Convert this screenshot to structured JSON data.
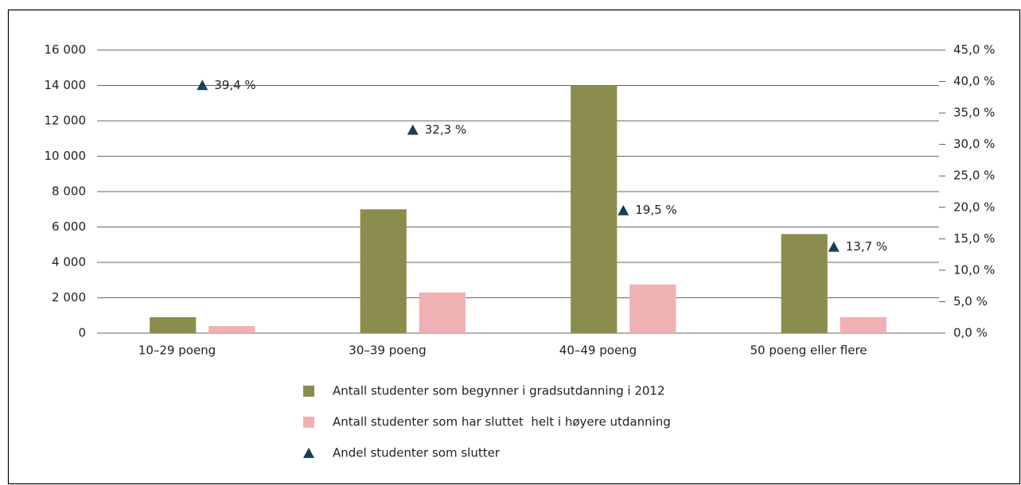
{
  "chart_data": {
    "type": "bar",
    "categories": [
      "10–29 poeng",
      "30–39 poeng",
      "40–49 poeng",
      "50 poeng eller flere"
    ],
    "series": [
      {
        "name": "Antall studenter som begynner i gradsutdanning i 2012",
        "type": "bar",
        "color": "#8b8d4f",
        "values": [
          900,
          7000,
          14000,
          5600
        ]
      },
      {
        "name": "Antall studenter som har sluttet  helt i høyere utdanning",
        "type": "bar",
        "color": "#efb1b3",
        "values": [
          400,
          2300,
          2750,
          900
        ]
      },
      {
        "name": "Andel studenter som slutter",
        "type": "scatter",
        "axis": "y2",
        "color": "#1b3f56",
        "values": [
          39.4,
          32.3,
          19.5,
          13.7
        ],
        "value_labels": [
          "39,4 %",
          "32,3 %",
          "19,5 %",
          "13,7 %"
        ]
      }
    ],
    "ylim": [
      0,
      16000
    ],
    "yticks": [
      0,
      {
        "value": 2000,
        "label": "2 000"
      },
      {
        "value": 4000,
        "label": "4 000"
      },
      {
        "value": 6000,
        "label": "6 000"
      },
      {
        "value": 8000,
        "label": "8 000"
      },
      {
        "value": 10000,
        "label": "10 000"
      },
      {
        "value": 12000,
        "label": "12 000"
      },
      {
        "value": 14000,
        "label": "14 000"
      },
      {
        "value": 16000,
        "label": "16 000"
      }
    ],
    "y2lim": [
      0,
      45
    ],
    "y2ticks": [
      {
        "value": 0,
        "label": "0,0 %"
      },
      {
        "value": 5,
        "label": "5,0 %"
      },
      {
        "value": 10,
        "label": "10,0 %"
      },
      {
        "value": 15,
        "label": "15,0 %"
      },
      {
        "value": 20,
        "label": "20,0 %"
      },
      {
        "value": 25,
        "label": "25,0 %"
      },
      {
        "value": 30,
        "label": "30,0 %"
      },
      {
        "value": 35,
        "label": "35,0 %"
      },
      {
        "value": 40,
        "label": "40,0 %"
      },
      {
        "value": 45,
        "label": "45,0 %"
      }
    ],
    "grid": true,
    "legend": "bottom"
  }
}
